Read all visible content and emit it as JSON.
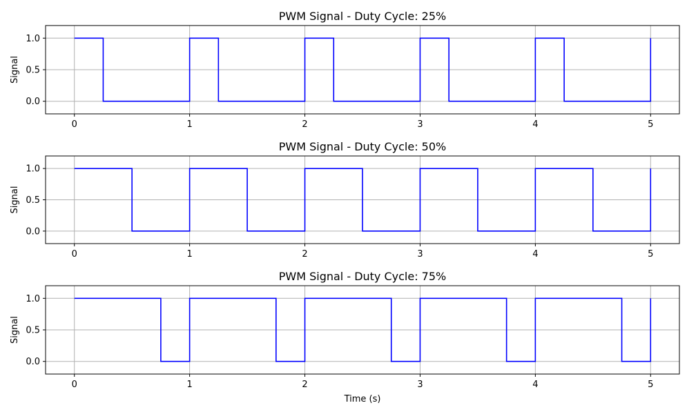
{
  "chart_data": [
    {
      "type": "line",
      "title": "PWM Signal - Duty Cycle: 25%",
      "xlabel": "",
      "ylabel": "Signal",
      "xlim": [
        -0.25,
        5.25
      ],
      "ylim": [
        -0.2,
        1.2
      ],
      "xticks": [
        0,
        1,
        2,
        3,
        4,
        5
      ],
      "xtick_labels": [
        "0",
        "1",
        "2",
        "3",
        "4",
        "5"
      ],
      "yticks": [
        0.0,
        0.5,
        1.0
      ],
      "ytick_labels": [
        "0.0",
        "0.5",
        "1.0"
      ],
      "grid": true,
      "series": [
        {
          "color": "#0000ff",
          "x": [
            0,
            0.25,
            0.25,
            1,
            1,
            1.25,
            1.25,
            2,
            2,
            2.25,
            2.25,
            3,
            3,
            3.25,
            3.25,
            4,
            4,
            4.25,
            4.25,
            5,
            5
          ],
          "y": [
            1,
            1,
            0,
            0,
            1,
            1,
            0,
            0,
            1,
            1,
            0,
            0,
            1,
            1,
            0,
            0,
            1,
            1,
            0,
            0,
            1
          ]
        }
      ]
    },
    {
      "type": "line",
      "title": "PWM Signal - Duty Cycle: 50%",
      "xlabel": "",
      "ylabel": "Signal",
      "xlim": [
        -0.25,
        5.25
      ],
      "ylim": [
        -0.2,
        1.2
      ],
      "xticks": [
        0,
        1,
        2,
        3,
        4,
        5
      ],
      "xtick_labels": [
        "0",
        "1",
        "2",
        "3",
        "4",
        "5"
      ],
      "yticks": [
        0.0,
        0.5,
        1.0
      ],
      "ytick_labels": [
        "0.0",
        "0.5",
        "1.0"
      ],
      "grid": true,
      "series": [
        {
          "color": "#0000ff",
          "x": [
            0,
            0.5,
            0.5,
            1,
            1,
            1.5,
            1.5,
            2,
            2,
            2.5,
            2.5,
            3,
            3,
            3.5,
            3.5,
            4,
            4,
            4.5,
            4.5,
            5,
            5
          ],
          "y": [
            1,
            1,
            0,
            0,
            1,
            1,
            0,
            0,
            1,
            1,
            0,
            0,
            1,
            1,
            0,
            0,
            1,
            1,
            0,
            0,
            1
          ]
        }
      ]
    },
    {
      "type": "line",
      "title": "PWM Signal - Duty Cycle: 75%",
      "xlabel": "Time (s)",
      "ylabel": "Signal",
      "xlim": [
        -0.25,
        5.25
      ],
      "ylim": [
        -0.2,
        1.2
      ],
      "xticks": [
        0,
        1,
        2,
        3,
        4,
        5
      ],
      "xtick_labels": [
        "0",
        "1",
        "2",
        "3",
        "4",
        "5"
      ],
      "yticks": [
        0.0,
        0.5,
        1.0
      ],
      "ytick_labels": [
        "0.0",
        "0.5",
        "1.0"
      ],
      "grid": true,
      "series": [
        {
          "color": "#0000ff",
          "x": [
            0,
            0.75,
            0.75,
            1,
            1,
            1.75,
            1.75,
            2,
            2,
            2.75,
            2.75,
            3,
            3,
            3.75,
            3.75,
            4,
            4,
            4.75,
            4.75,
            5,
            5
          ],
          "y": [
            1,
            1,
            0,
            0,
            1,
            1,
            0,
            0,
            1,
            1,
            0,
            0,
            1,
            1,
            0,
            0,
            1,
            1,
            0,
            0,
            1
          ]
        }
      ]
    }
  ]
}
